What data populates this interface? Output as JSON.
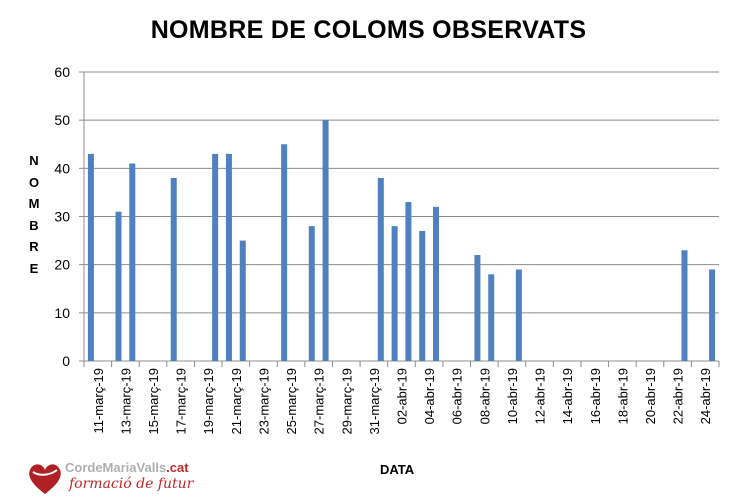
{
  "chart_data": {
    "type": "bar",
    "title": "NOMBRE DE COLOMS OBSERVATS",
    "xlabel": "DATA",
    "ylabel": "NOMBRE",
    "ylim": [
      0,
      60
    ],
    "yticks": [
      0,
      10,
      20,
      30,
      40,
      50,
      60
    ],
    "grid": true,
    "color": "#4F81BD",
    "tick_labels": [
      "11-març-19",
      "13-març-19",
      "15-març-19",
      "17-març-19",
      "19-març-19",
      "21-març-19",
      "23-març-19",
      "25-març-19",
      "27-març-19",
      "29-març-19",
      "31-març-19",
      "02-abr-19",
      "04-abr-19",
      "06-abr-19",
      "08-abr-19",
      "10-abr-19",
      "12-abr-19",
      "14-abr-19",
      "16-abr-19",
      "18-abr-19",
      "20-abr-19",
      "22-abr-19",
      "24-abr-19"
    ],
    "points": [
      {
        "date": "11-març-19",
        "value": 43
      },
      {
        "date": "13-març-19",
        "value": 31
      },
      {
        "date": "14-març-19",
        "value": 41
      },
      {
        "date": "17-març-19",
        "value": 38
      },
      {
        "date": "20-març-19",
        "value": 43
      },
      {
        "date": "21-març-19",
        "value": 43
      },
      {
        "date": "22-març-19",
        "value": 25
      },
      {
        "date": "25-març-19",
        "value": 45
      },
      {
        "date": "27-març-19",
        "value": 28
      },
      {
        "date": "28-març-19",
        "value": 50
      },
      {
        "date": "01-abr-19",
        "value": 38
      },
      {
        "date": "02-abr-19",
        "value": 28
      },
      {
        "date": "03-abr-19",
        "value": 33
      },
      {
        "date": "04-abr-19",
        "value": 27
      },
      {
        "date": "05-abr-19",
        "value": 32
      },
      {
        "date": "08-abr-19",
        "value": 22
      },
      {
        "date": "09-abr-19",
        "value": 18
      },
      {
        "date": "11-abr-19",
        "value": 19
      },
      {
        "date": "23-abr-19",
        "value": 23
      },
      {
        "date": "25-abr-19",
        "value": 19
      }
    ],
    "day_index": [
      0,
      2,
      3,
      6,
      9,
      10,
      11,
      14,
      16,
      17,
      21,
      22,
      23,
      24,
      25,
      28,
      29,
      31,
      43,
      45
    ]
  },
  "logo": {
    "line1_a": "CordeMariaValls",
    "line1_b": ".cat",
    "line2": "formació de futur"
  }
}
